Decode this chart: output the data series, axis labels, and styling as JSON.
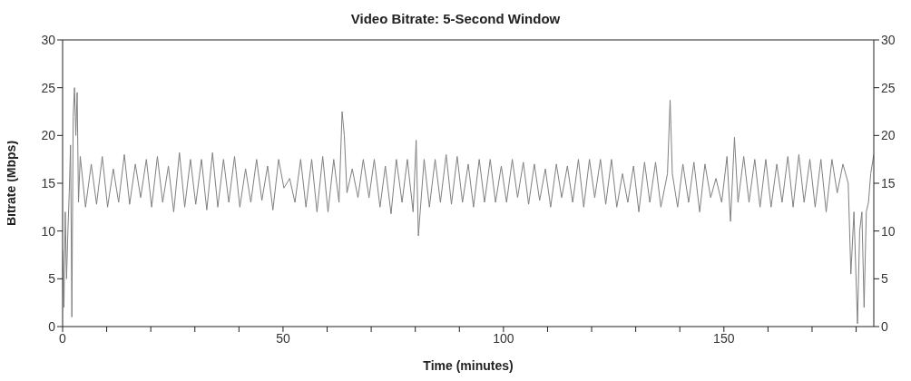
{
  "chart_data": {
    "type": "line",
    "title": "Video Bitrate: 5-Second Window",
    "xlabel": "Time (minutes)",
    "ylabel": "Bitrate (Mbps)",
    "x": [
      0,
      0.3,
      0.6,
      0.9,
      1.2,
      1.5,
      1.8,
      2.1,
      2.4,
      2.7,
      3.0,
      3.3,
      3.6,
      4,
      5.2,
      6.5,
      7.7,
      9,
      10.2,
      11.5,
      12.7,
      14,
      15.2,
      16.5,
      17.7,
      19,
      20.2,
      21.5,
      22.7,
      24,
      25.2,
      26.5,
      27.7,
      29,
      30.2,
      31.5,
      32.7,
      34,
      35.2,
      36.5,
      37.7,
      39,
      40.2,
      41.5,
      42.7,
      44,
      45.2,
      46.5,
      47.7,
      49,
      50.2,
      51.5,
      52.7,
      54,
      55.2,
      56.5,
      57.7,
      59,
      60.2,
      61.5,
      62.7,
      63.4,
      63.9,
      64.5,
      65.7,
      67,
      68.2,
      69.5,
      70.7,
      72,
      73.2,
      74.5,
      75.7,
      77,
      78.2,
      79.5,
      80.2,
      80.7,
      82,
      83.2,
      84.5,
      85.7,
      87,
      88.2,
      89.5,
      90.7,
      92,
      93.2,
      94.5,
      95.7,
      97,
      98.2,
      99.5,
      100.7,
      102,
      103.2,
      104.5,
      105.7,
      107,
      108.2,
      109.5,
      110.7,
      112,
      113.2,
      114.5,
      115.7,
      117,
      118.2,
      119.5,
      120.7,
      122,
      123.2,
      124.5,
      125.7,
      127,
      128.2,
      129.5,
      130.7,
      132,
      133.2,
      134.5,
      135.7,
      137.2,
      137.8,
      138.3,
      139.5,
      140.7,
      142,
      143.2,
      144.5,
      145.7,
      147,
      148.2,
      149.5,
      150.7,
      151.5,
      152.4,
      153.2,
      154.5,
      155.7,
      157,
      158.2,
      159.5,
      160.7,
      162,
      163.2,
      164.5,
      165.7,
      167,
      168.2,
      169.5,
      170.7,
      172,
      173.2,
      174.5,
      175.7,
      177,
      178.2,
      178.8,
      179.5,
      180.3,
      180.8,
      181.3,
      181.8,
      182.3,
      182.8,
      183.3,
      184
    ],
    "series": [
      {
        "color": "#808080",
        "values": [
          8,
          2,
          12,
          5,
          10,
          14,
          19,
          1,
          22,
          25,
          20,
          24.5,
          13,
          17.8,
          12.5,
          17,
          12.8,
          17.8,
          12.5,
          16.5,
          13,
          18,
          12.8,
          17,
          13.5,
          17.5,
          12.5,
          17.8,
          13,
          16.8,
          12,
          18.2,
          12.5,
          17.5,
          12.8,
          17.5,
          12.2,
          18.2,
          12.5,
          17.5,
          13,
          17.8,
          12.5,
          16.5,
          13,
          17.5,
          13.2,
          16.8,
          12.2,
          17.5,
          14.5,
          15.5,
          13,
          17.5,
          12.5,
          17.5,
          12,
          17.8,
          12,
          17.5,
          13,
          22.5,
          20,
          14,
          16.5,
          13.5,
          17.5,
          13.5,
          17.5,
          12.5,
          16.8,
          11.8,
          17.5,
          13,
          17.5,
          12,
          19.5,
          9.5,
          17.5,
          12.5,
          17.5,
          13,
          18,
          12.8,
          17.8,
          13,
          17,
          12.5,
          17.5,
          13,
          17.5,
          13,
          16.8,
          13,
          17.5,
          13.5,
          17.2,
          12.8,
          17,
          13.2,
          16.5,
          12.5,
          17,
          13.5,
          16.8,
          13,
          17.5,
          12.5,
          17.5,
          13.5,
          17.5,
          12.8,
          17.5,
          12.5,
          16,
          13,
          16.8,
          12,
          17.2,
          13,
          17.2,
          12.5,
          16,
          23.7,
          16,
          12.5,
          17,
          13,
          17.2,
          12,
          17,
          13.5,
          15.5,
          13,
          17.8,
          11,
          19.8,
          13,
          17.8,
          13,
          17.5,
          12.5,
          17.5,
          12.5,
          17,
          13,
          17.8,
          12.5,
          18,
          13,
          17.5,
          12.5,
          17.5,
          12,
          17.5,
          14,
          17,
          15,
          5.5,
          12,
          0.3,
          10,
          12,
          2,
          12,
          13,
          16,
          18
        ]
      }
    ],
    "xlim": [
      0,
      184
    ],
    "xticks": [
      0,
      {
        "value": 10,
        "label": null
      },
      {
        "value": 20,
        "label": null
      },
      {
        "value": 30,
        "label": null
      },
      {
        "value": 40,
        "label": null
      },
      50,
      {
        "value": 60,
        "label": null
      },
      {
        "value": 70,
        "label": null
      },
      {
        "value": 80,
        "label": null
      },
      {
        "value": 90,
        "label": null
      },
      100,
      {
        "value": 110,
        "label": null
      },
      {
        "value": 120,
        "label": null
      },
      {
        "value": 130,
        "label": null
      },
      {
        "value": 140,
        "label": null
      },
      150,
      {
        "value": 160,
        "label": null
      },
      {
        "value": 170,
        "label": null
      },
      {
        "value": 180,
        "label": null
      }
    ],
    "ylim": [
      0,
      30
    ],
    "yticks": [
      0,
      5,
      10,
      15,
      20,
      25,
      30
    ],
    "y2lim": [
      0,
      30
    ],
    "y2ticks": [
      0,
      5,
      10,
      15,
      20,
      25,
      30
    ],
    "marker": "none",
    "line_style": "solid",
    "grid": false,
    "legend": false
  }
}
